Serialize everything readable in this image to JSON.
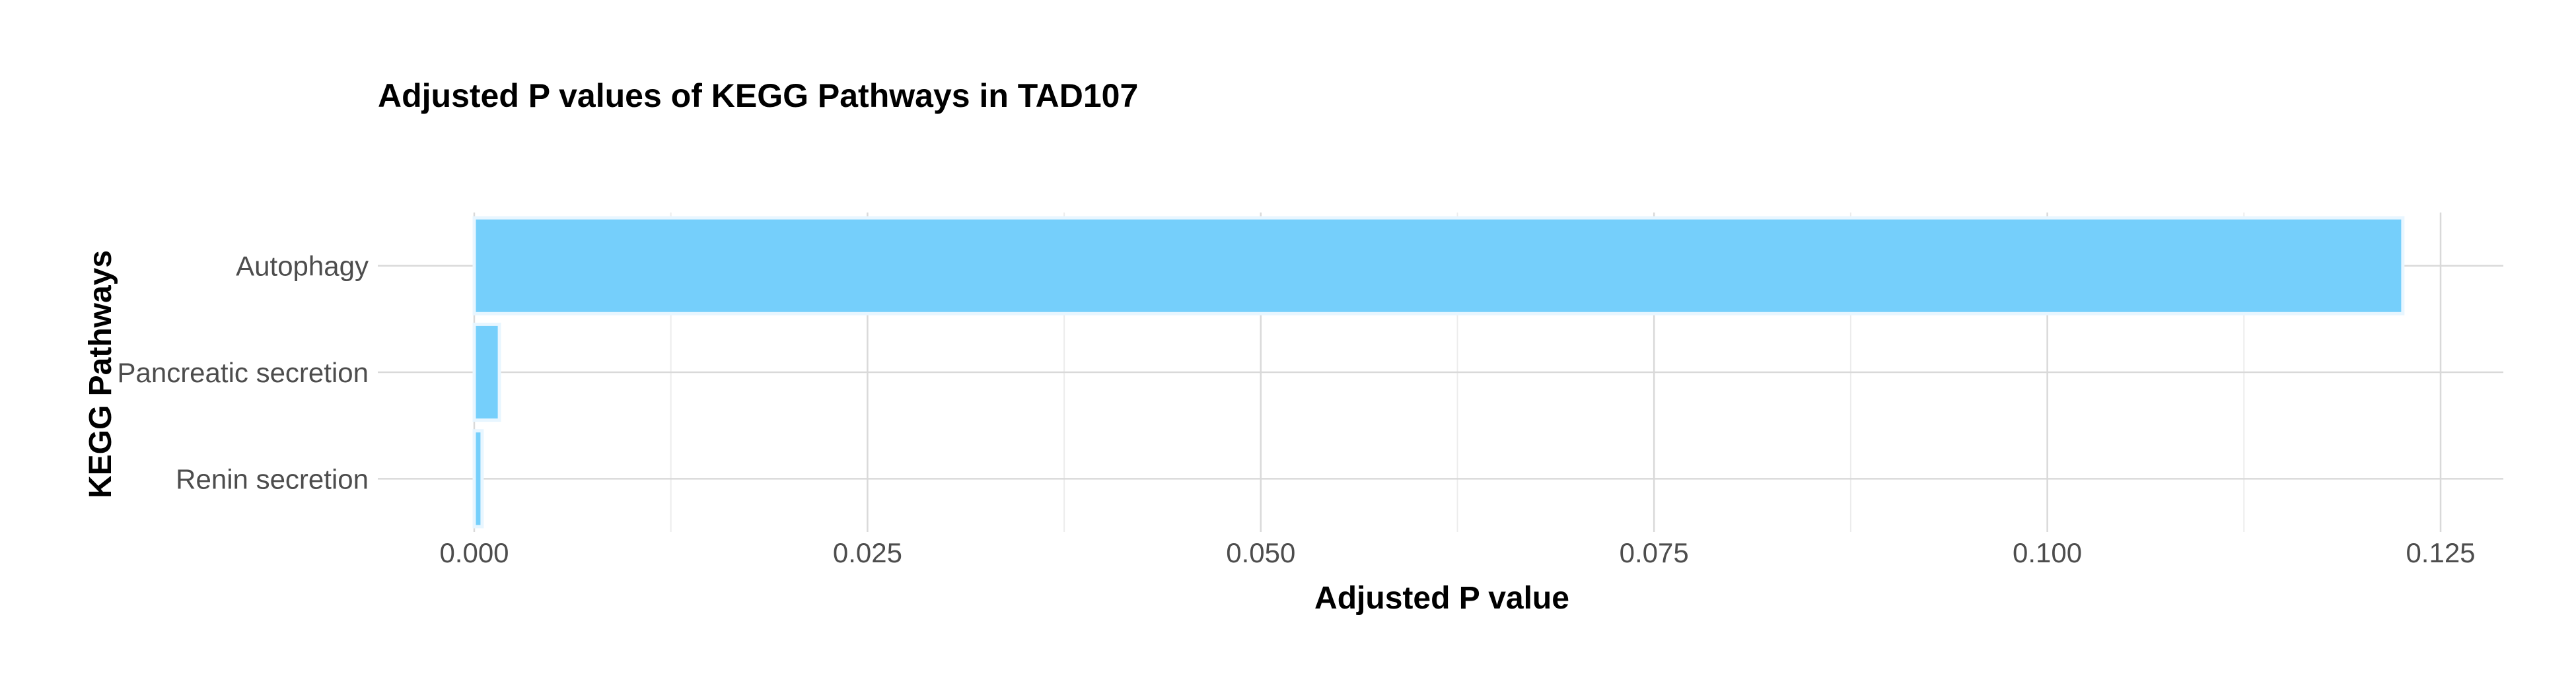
{
  "chart_data": {
    "type": "bar",
    "orientation": "horizontal",
    "title": "Adjusted P values of KEGG Pathways in TAD107",
    "xlabel": "Adjusted P value",
    "ylabel": "KEGG Pathways",
    "categories": [
      "Autophagy",
      "Pancreatic secretion",
      "Renin secretion"
    ],
    "values": [
      0.1226,
      0.0016,
      0.0005
    ],
    "xlim": [
      0,
      0.1285
    ],
    "xticks": [
      0.0,
      0.025,
      0.05,
      0.075,
      0.1,
      0.125
    ],
    "xtick_labels": [
      "0.000",
      "0.025",
      "0.050",
      "0.075",
      "0.100",
      "0.125"
    ],
    "bar_color": "#75CFFB",
    "grid": true,
    "legend": "none"
  }
}
